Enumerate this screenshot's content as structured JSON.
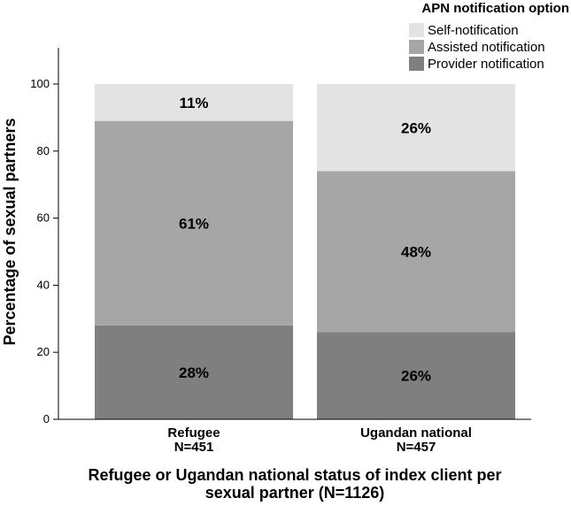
{
  "chart_data": {
    "type": "bar",
    "stacked": true,
    "categories": [
      "Refugee",
      "Ugandan national"
    ],
    "category_sublabels": [
      "N=451",
      "N=457"
    ],
    "series": [
      {
        "name": "Provider notification",
        "values": [
          28,
          26
        ],
        "labels": [
          "28%",
          "26%"
        ],
        "color": "#7f7f7f"
      },
      {
        "name": "Assisted notification",
        "values": [
          61,
          48
        ],
        "labels": [
          "61%",
          "48%"
        ],
        "color": "#a6a6a6"
      },
      {
        "name": "Self-notification",
        "values": [
          11,
          26
        ],
        "labels": [
          "11%",
          "26%"
        ],
        "color": "#e3e3e3"
      }
    ],
    "legend_order": [
      "Self-notification",
      "Assisted notification",
      "Provider notification"
    ],
    "legend_title": "APN notification option",
    "legend_position": "top-right",
    "ylabel": "Percentage of sexual partners",
    "xlabel_lines": [
      "Refugee or Ugandan national status of index client per",
      "sexual partner (N=1126)"
    ],
    "ylim": [
      0,
      110
    ],
    "yticks": [
      0,
      20,
      40,
      60,
      80,
      100
    ],
    "grid": false
  }
}
